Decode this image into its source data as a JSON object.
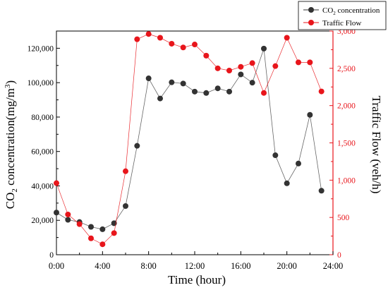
{
  "chart_data": {
    "type": "line",
    "x_unit": "hour",
    "x": [
      0,
      1,
      2,
      3,
      4,
      5,
      6,
      7,
      8,
      9,
      10,
      11,
      12,
      13,
      14,
      15,
      16,
      17,
      18,
      19,
      20,
      21,
      22,
      23
    ],
    "xlim": [
      0,
      24
    ],
    "x_ticks": [
      0,
      4,
      8,
      12,
      16,
      20,
      24
    ],
    "x_tick_labels": [
      "0:00",
      "4:00",
      "8:00",
      "12:00",
      "16:00",
      "20:00",
      "24:00"
    ],
    "xlabel": "Time (hour)",
    "ylabel_left": {
      "prefix": "CO",
      "sub": "2",
      "rest": " concentration(mg/m",
      "sup": "3",
      "end": ")"
    },
    "ylabel_right": "Traffic Flow  (veh/h)",
    "ylim_left": [
      0,
      130000
    ],
    "yticks_left": [
      0,
      20000,
      40000,
      60000,
      80000,
      100000,
      120000
    ],
    "ytick_labels_left": [
      "0",
      "20,000",
      "40,000",
      "60,000",
      "80,000",
      "100,000",
      "120,000"
    ],
    "ylim_right": [
      0,
      3000
    ],
    "yticks_right": [
      0,
      500,
      1000,
      1500,
      2000,
      2500,
      3000
    ],
    "ytick_labels_right": [
      "0",
      "500",
      "1,000",
      "1,500",
      "2,000",
      "2,500",
      "3,000"
    ],
    "grid": false,
    "legend_position": "top-right, outside",
    "series": [
      {
        "name": "CO2 concentration",
        "legend": {
          "prefix": "CO",
          "sub": "2",
          "rest": " concentration"
        },
        "axis": "left",
        "color": "#333333",
        "values": [
          24500,
          20300,
          19000,
          16200,
          14800,
          18300,
          28300,
          63300,
          102500,
          90800,
          100200,
          99500,
          94800,
          94000,
          96700,
          94800,
          104800,
          100000,
          119800,
          57800,
          41500,
          53000,
          81300,
          37200
        ]
      },
      {
        "name": "Traffic Flow",
        "legend": {
          "prefix": "Traffic Flow",
          "sub": "",
          "rest": ""
        },
        "axis": "right",
        "color": "#e8151b",
        "values": [
          960,
          540,
          410,
          220,
          140,
          290,
          1120,
          2890,
          2960,
          2910,
          2830,
          2780,
          2820,
          2670,
          2500,
          2470,
          2520,
          2570,
          2170,
          2530,
          2910,
          2580,
          2580,
          2190
        ]
      }
    ]
  }
}
